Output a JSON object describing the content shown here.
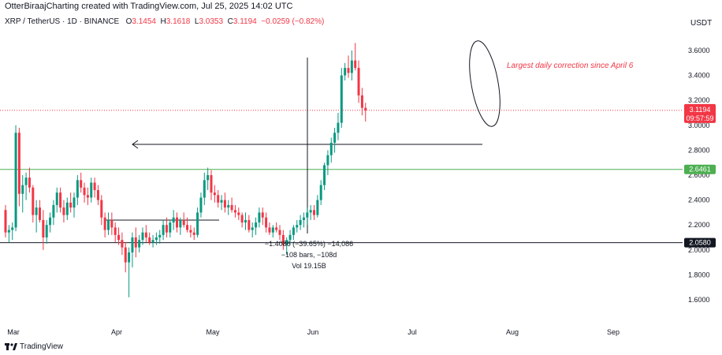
{
  "header": {
    "credit": "OtterBiraajCharting created with TradingView.com, Jul 25, 2025 14:02 UTC",
    "symbol": "XRP / TetherUS · 1D · BINANCE",
    "o_label": "O",
    "o_value": "3.1454",
    "h_label": "H",
    "h_value": "3.1618",
    "l_label": "L",
    "l_value": "3.0353",
    "c_label": "C",
    "c_value": "3.1194",
    "change": "−0.0259 (−0.82%)",
    "currency": "USDT"
  },
  "footer": {
    "brand": "TradingView"
  },
  "chart_data": {
    "type": "candlestick",
    "ylim": [
      1.48,
      3.8
    ],
    "y_ticks": [
      "3.6000",
      "3.4000",
      "3.2000",
      "3.0000",
      "2.8000",
      "2.6000",
      "2.4000",
      "2.2000",
      "2.0000",
      "1.8000",
      "1.6000"
    ],
    "x_ticks": [
      "Mar",
      "Apr",
      "May",
      "Jun",
      "Jul",
      "Aug",
      "Sep"
    ],
    "price_badge": {
      "value": "3.1194",
      "countdown": "09:57:59",
      "color": "#f23645"
    },
    "levels": [
      {
        "value": 2.6461,
        "label": "2.6461",
        "color": "#4caf50"
      },
      {
        "value": 2.058,
        "label": "2.0580",
        "color": "#131722"
      }
    ],
    "annotation": "Largest daily correction since April 6",
    "measure": {
      "line1": "−1.4086 (−39.65%) −14,086",
      "line2": "−108 bars, −108d",
      "line3": "Vol 19.15B"
    },
    "colors": {
      "up": "#089981",
      "down": "#f23645"
    },
    "candles": [
      [
        2.32,
        2.36,
        2.1,
        2.14
      ],
      [
        2.14,
        2.2,
        2.06,
        2.16
      ],
      [
        2.16,
        2.22,
        2.08,
        2.18
      ],
      [
        2.18,
        3.0,
        2.15,
        2.94
      ],
      [
        2.94,
        2.98,
        2.35,
        2.45
      ],
      [
        2.45,
        2.6,
        2.3,
        2.52
      ],
      [
        2.52,
        2.62,
        2.4,
        2.58
      ],
      [
        2.58,
        2.66,
        2.46,
        2.5
      ],
      [
        2.5,
        2.52,
        2.22,
        2.28
      ],
      [
        2.28,
        2.4,
        2.14,
        2.34
      ],
      [
        2.34,
        2.4,
        2.22,
        2.24
      ],
      [
        2.24,
        2.32,
        2.0,
        2.1
      ],
      [
        2.1,
        2.24,
        2.05,
        2.2
      ],
      [
        2.2,
        2.3,
        2.14,
        2.26
      ],
      [
        2.26,
        2.4,
        2.2,
        2.36
      ],
      [
        2.36,
        2.5,
        2.3,
        2.46
      ],
      [
        2.46,
        2.5,
        2.3,
        2.34
      ],
      [
        2.34,
        2.4,
        2.22,
        2.28
      ],
      [
        2.28,
        2.42,
        2.24,
        2.38
      ],
      [
        2.38,
        2.46,
        2.3,
        2.34
      ],
      [
        2.34,
        2.46,
        2.26,
        2.42
      ],
      [
        2.42,
        2.6,
        2.36,
        2.56
      ],
      [
        2.56,
        2.62,
        2.46,
        2.5
      ],
      [
        2.5,
        2.54,
        2.38,
        2.44
      ],
      [
        2.44,
        2.5,
        2.36,
        2.42
      ],
      [
        2.42,
        2.58,
        2.38,
        2.54
      ],
      [
        2.54,
        2.58,
        2.42,
        2.48
      ],
      [
        2.48,
        2.52,
        2.36,
        2.4
      ],
      [
        2.4,
        2.44,
        2.2,
        2.26
      ],
      [
        2.26,
        2.3,
        2.1,
        2.16
      ],
      [
        2.16,
        2.3,
        2.12,
        2.24
      ],
      [
        2.24,
        2.3,
        2.12,
        2.18
      ],
      [
        2.18,
        2.22,
        2.06,
        2.12
      ],
      [
        2.12,
        2.18,
        2.04,
        2.08
      ],
      [
        2.08,
        2.14,
        1.96,
        2.02
      ],
      [
        2.02,
        2.06,
        1.82,
        1.9
      ],
      [
        1.9,
        2.02,
        1.62,
        1.98
      ],
      [
        1.98,
        2.14,
        1.86,
        2.1
      ],
      [
        2.1,
        2.18,
        1.94,
        2.02
      ],
      [
        2.02,
        2.12,
        1.98,
        2.08
      ],
      [
        2.08,
        2.18,
        2.04,
        2.14
      ],
      [
        2.14,
        2.2,
        2.06,
        2.1
      ],
      [
        2.1,
        2.14,
        2.04,
        2.06
      ],
      [
        2.06,
        2.12,
        2.02,
        2.08
      ],
      [
        2.08,
        2.14,
        2.04,
        2.1
      ],
      [
        2.1,
        2.16,
        2.05,
        2.12
      ],
      [
        2.12,
        2.24,
        2.08,
        2.2
      ],
      [
        2.2,
        2.26,
        2.1,
        2.14
      ],
      [
        2.14,
        2.24,
        2.1,
        2.22
      ],
      [
        2.22,
        2.32,
        2.16,
        2.26
      ],
      [
        2.26,
        2.3,
        2.14,
        2.18
      ],
      [
        2.18,
        2.26,
        2.12,
        2.24
      ],
      [
        2.24,
        2.3,
        2.18,
        2.2
      ],
      [
        2.2,
        2.26,
        2.14,
        2.16
      ],
      [
        2.16,
        2.2,
        2.1,
        2.14
      ],
      [
        2.14,
        2.18,
        2.08,
        2.12
      ],
      [
        2.12,
        2.34,
        2.1,
        2.3
      ],
      [
        2.3,
        2.46,
        2.26,
        2.42
      ],
      [
        2.42,
        2.62,
        2.36,
        2.56
      ],
      [
        2.56,
        2.66,
        2.48,
        2.6
      ],
      [
        2.6,
        2.64,
        2.4,
        2.46
      ],
      [
        2.46,
        2.52,
        2.38,
        2.44
      ],
      [
        2.44,
        2.48,
        2.34,
        2.38
      ],
      [
        2.38,
        2.44,
        2.32,
        2.4
      ],
      [
        2.4,
        2.46,
        2.3,
        2.34
      ],
      [
        2.34,
        2.4,
        2.28,
        2.36
      ],
      [
        2.36,
        2.42,
        2.3,
        2.32
      ],
      [
        2.32,
        2.36,
        2.26,
        2.3
      ],
      [
        2.3,
        2.34,
        2.24,
        2.28
      ],
      [
        2.28,
        2.3,
        2.18,
        2.22
      ],
      [
        2.22,
        2.3,
        2.16,
        2.24
      ],
      [
        2.24,
        2.28,
        2.14,
        2.16
      ],
      [
        2.16,
        2.22,
        2.1,
        2.18
      ],
      [
        2.18,
        2.26,
        2.12,
        2.22
      ],
      [
        2.22,
        2.34,
        2.18,
        2.3
      ],
      [
        2.3,
        2.34,
        2.2,
        2.26
      ],
      [
        2.26,
        2.3,
        2.14,
        2.18
      ],
      [
        2.18,
        2.22,
        2.12,
        2.14
      ],
      [
        2.14,
        2.2,
        2.1,
        2.18
      ],
      [
        2.18,
        2.22,
        2.14,
        2.16
      ],
      [
        2.16,
        2.2,
        2.08,
        2.12
      ],
      [
        2.12,
        2.16,
        2.0,
        2.04
      ],
      [
        2.04,
        2.1,
        1.96,
        2.08
      ],
      [
        2.08,
        2.16,
        2.04,
        2.12
      ],
      [
        2.12,
        2.2,
        2.08,
        2.18
      ],
      [
        2.18,
        2.24,
        2.14,
        2.2
      ],
      [
        2.2,
        2.28,
        2.16,
        2.24
      ],
      [
        2.24,
        2.3,
        2.18,
        2.26
      ],
      [
        2.26,
        2.34,
        2.2,
        2.3
      ],
      [
        2.3,
        2.36,
        2.24,
        2.32
      ],
      [
        2.32,
        2.36,
        2.24,
        2.28
      ],
      [
        2.28,
        2.44,
        2.26,
        2.4
      ],
      [
        2.4,
        2.56,
        2.36,
        2.52
      ],
      [
        2.52,
        2.7,
        2.48,
        2.68
      ],
      [
        2.68,
        2.8,
        2.6,
        2.76
      ],
      [
        2.76,
        2.9,
        2.7,
        2.86
      ],
      [
        2.86,
        2.98,
        2.78,
        2.94
      ],
      [
        2.94,
        3.1,
        2.88,
        3.02
      ],
      [
        3.02,
        3.46,
        2.98,
        3.4
      ],
      [
        3.4,
        3.5,
        3.36,
        3.46
      ],
      [
        3.46,
        3.56,
        3.38,
        3.42
      ],
      [
        3.42,
        3.6,
        3.36,
        3.52
      ],
      [
        3.52,
        3.66,
        3.44,
        3.46
      ],
      [
        3.46,
        3.52,
        3.18,
        3.24
      ],
      [
        3.24,
        3.3,
        3.08,
        3.14
      ],
      [
        3.14,
        3.18,
        3.03,
        3.12
      ]
    ]
  }
}
